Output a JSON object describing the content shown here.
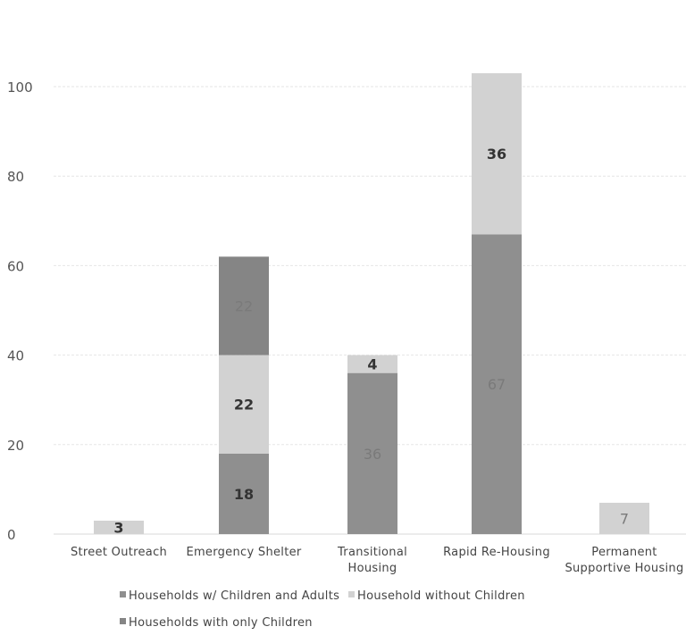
{
  "chart_data": {
    "type": "bar",
    "stacked": true,
    "categories": [
      [
        "Street Outreach"
      ],
      [
        "Emergency Shelter"
      ],
      [
        "Transitional",
        "Housing"
      ],
      [
        "Rapid Re-Housing"
      ],
      [
        "Permanent",
        "Supportive Housing"
      ]
    ],
    "series": [
      {
        "name": "Households w/ Children and Adults",
        "color": "#8f8f8f",
        "values": [
          0,
          18,
          36,
          67,
          0
        ],
        "labels": [
          "",
          "18",
          "36",
          "67",
          ""
        ],
        "label_bold": [
          false,
          true,
          false,
          false,
          false
        ]
      },
      {
        "name": "Household without Children",
        "color": "#d2d2d2",
        "values": [
          3,
          22,
          4,
          36,
          7
        ],
        "labels": [
          "3",
          "22",
          "4",
          "36",
          "7"
        ],
        "label_bold": [
          true,
          true,
          true,
          true,
          false
        ]
      },
      {
        "name": "Households with only Children",
        "color": "#858585",
        "values": [
          0,
          22,
          0,
          0,
          0
        ],
        "labels": [
          "",
          "22",
          "",
          "",
          ""
        ],
        "label_bold": [
          false,
          false,
          false,
          false,
          false
        ]
      }
    ],
    "ylim": [
      0,
      100
    ],
    "yticks": [
      0,
      20,
      40,
      60,
      80,
      100
    ],
    "grid": true,
    "legend_position": "bottom"
  }
}
